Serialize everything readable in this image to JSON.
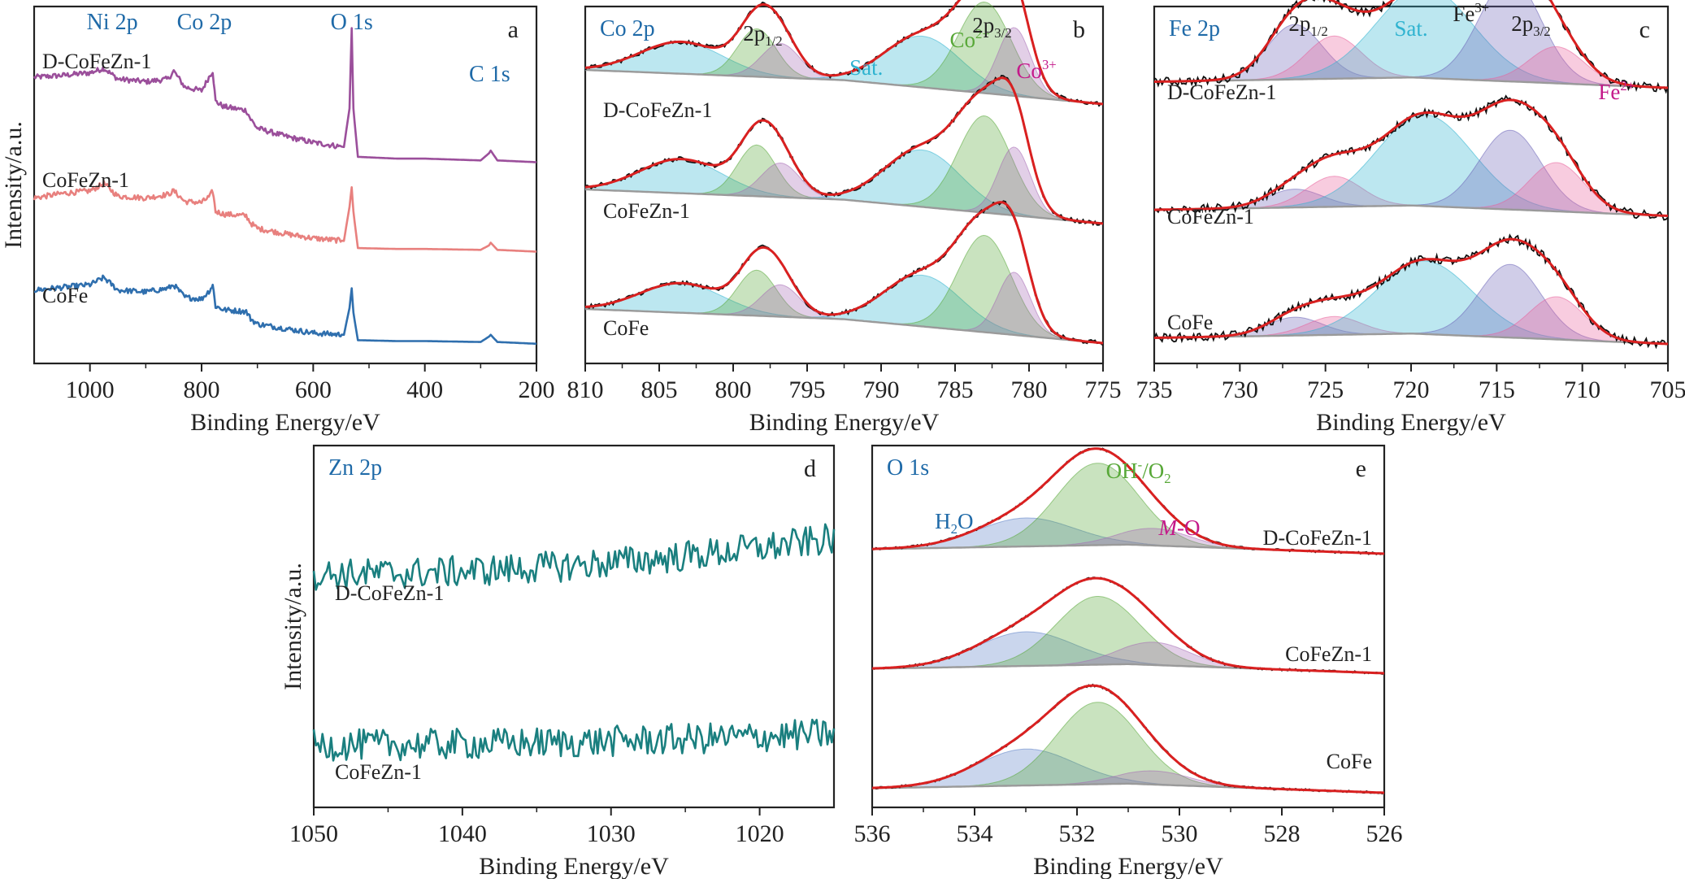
{
  "figure": {
    "colors": {
      "D-CoFeZn-1": "#9b4f9b",
      "CoFeZn-1": "#e8807e",
      "CoFe": "#2f6fae",
      "zn": "#1a7f7f",
      "title": "#1f6aa8",
      "cyan": "#2fb3d0",
      "green": "#58a838",
      "magenta": "#c4198a",
      "fit": "#d92020",
      "raw": "#111111",
      "background": "#9a9a9a"
    }
  },
  "chart_data": [
    {
      "id": "a",
      "type": "line",
      "letter": "a",
      "xlabel": "Binding Energy/eV",
      "ylabel": "Intensity/a.u.",
      "xlim": [
        1100,
        200
      ],
      "xticks": [
        1000,
        800,
        600,
        400,
        200
      ],
      "grid": false,
      "series": [
        {
          "name": "D-CoFeZn-1",
          "color": "#9b4f9b",
          "offset": 2.05,
          "x": [
            1100,
            1050,
            1000,
            975,
            950,
            900,
            860,
            850,
            830,
            800,
            785,
            780,
            775,
            760,
            720,
            712,
            700,
            650,
            600,
            545,
            535,
            531,
            528,
            520,
            450,
            400,
            300,
            285,
            282,
            270,
            200
          ],
          "y": [
            0.95,
            0.97,
            1.0,
            1.05,
            0.93,
            0.9,
            0.93,
            1.02,
            0.84,
            0.8,
            0.97,
            1.02,
            0.68,
            0.62,
            0.58,
            0.48,
            0.38,
            0.29,
            0.22,
            0.17,
            0.6,
            1.5,
            0.6,
            0.06,
            0.04,
            0.04,
            0.02,
            0.1,
            0.13,
            0.02,
            0.0
          ]
        },
        {
          "name": "CoFeZn-1",
          "color": "#e8807e",
          "offset": 1.05,
          "x": [
            1100,
            1050,
            1000,
            975,
            950,
            900,
            860,
            850,
            830,
            800,
            785,
            780,
            775,
            760,
            720,
            712,
            700,
            650,
            600,
            545,
            535,
            531,
            528,
            520,
            450,
            400,
            300,
            285,
            282,
            270,
            200
          ],
          "y": [
            0.6,
            0.65,
            0.68,
            0.76,
            0.62,
            0.6,
            0.64,
            0.68,
            0.56,
            0.55,
            0.62,
            0.68,
            0.45,
            0.42,
            0.4,
            0.32,
            0.26,
            0.2,
            0.15,
            0.12,
            0.5,
            0.72,
            0.45,
            0.04,
            0.03,
            0.03,
            0.02,
            0.07,
            0.1,
            0.02,
            0.0
          ]
        },
        {
          "name": "CoFe",
          "color": "#2f6fae",
          "offset": 0.02,
          "x": [
            1100,
            1050,
            1000,
            975,
            950,
            900,
            860,
            850,
            830,
            800,
            785,
            780,
            775,
            760,
            720,
            712,
            700,
            650,
            600,
            545,
            535,
            531,
            528,
            520,
            450,
            400,
            300,
            285,
            282,
            270,
            200
          ],
          "y": [
            0.6,
            0.63,
            0.66,
            0.74,
            0.6,
            0.58,
            0.62,
            0.66,
            0.52,
            0.5,
            0.6,
            0.66,
            0.42,
            0.38,
            0.36,
            0.28,
            0.22,
            0.17,
            0.12,
            0.1,
            0.4,
            0.62,
            0.35,
            0.04,
            0.03,
            0.03,
            0.02,
            0.08,
            0.1,
            0.02,
            0.0
          ]
        }
      ],
      "annotations": [
        {
          "text": "Ni 2p",
          "x": 960
        },
        {
          "text": "Co 2p",
          "x": 795
        },
        {
          "text": "O 1s",
          "x": 531
        },
        {
          "text": "C 1s",
          "x": 284
        }
      ]
    },
    {
      "id": "b",
      "type": "area",
      "title": "Co 2p",
      "letter": "b",
      "xlabel": "Binding Energy/eV",
      "xlim": [
        810,
        775
      ],
      "xticks": [
        810,
        805,
        800,
        795,
        790,
        785,
        780,
        775
      ],
      "grid": false,
      "background": {
        "left": 0.3,
        "right": 0.0
      },
      "spectra": [
        {
          "name": "D-CoFeZn-1",
          "offset": 2.1
        },
        {
          "name": "CoFeZn-1",
          "offset": 1.05
        },
        {
          "name": "CoFe",
          "offset": 0.0
        }
      ],
      "components": [
        {
          "name": "Sat.",
          "color": "#2fb3d0",
          "center": 803.5,
          "width": 2.8
        },
        {
          "name": "2p1/2 Co2+",
          "color": "#58a838",
          "center": 798.4,
          "width": 1.3
        },
        {
          "name": "2p1/2 Co3+",
          "color": "#a56bb5",
          "center": 796.8,
          "width": 1.3
        },
        {
          "name": "Sat.",
          "color": "#2fb3d0",
          "center": 787.2,
          "width": 2.6
        },
        {
          "name": "Co2+",
          "color": "#58a838",
          "center": 783.0,
          "width": 1.8
        },
        {
          "name": "Co3+",
          "color": "#a56bb5",
          "center": 781.0,
          "width": 1.1
        }
      ],
      "amplitudes": [
        [
          0.28,
          0.42,
          0.3,
          0.45,
          0.8,
          0.6
        ],
        [
          0.3,
          0.45,
          0.3,
          0.5,
          0.85,
          0.6
        ],
        [
          0.26,
          0.4,
          0.28,
          0.45,
          0.85,
          0.55
        ]
      ],
      "labels": [
        {
          "text": "2p",
          "sub": "1/2",
          "x": 798
        },
        {
          "text": "Sat.",
          "x": 791,
          "color": "#2fb3d0"
        },
        {
          "text": "Co",
          "sup": "2+",
          "x": 784,
          "color": "#58a838"
        },
        {
          "text": "2p",
          "sub": "3/2",
          "x": 782.5
        },
        {
          "text": "Co",
          "sup": "3+",
          "x": 779.5,
          "color": "#c4198a"
        }
      ]
    },
    {
      "id": "c",
      "type": "area",
      "title": "Fe 2p",
      "letter": "c",
      "xlabel": "Binding Energy/eV",
      "xlim": [
        735,
        705
      ],
      "xticks": [
        735,
        730,
        725,
        720,
        715,
        710,
        705
      ],
      "grid": false,
      "background": {
        "left": 0.05,
        "right": 0.0
      },
      "spectra": [
        {
          "name": "D-CoFeZn-1",
          "offset": 2.1
        },
        {
          "name": "CoFeZn-1",
          "offset": 1.05
        },
        {
          "name": "CoFe",
          "offset": 0.0
        }
      ],
      "components": [
        {
          "name": "2p1/2 Fe3+",
          "color": "#6c64b8",
          "center": 726.8,
          "width": 1.6
        },
        {
          "name": "2p1/2 Fe2+",
          "color": "#e8609a",
          "center": 724.5,
          "width": 1.6
        },
        {
          "name": "Sat.",
          "color": "#2fb3d0",
          "center": 719.2,
          "width": 2.8
        },
        {
          "name": "Fe3+",
          "color": "#6c64b8",
          "center": 714.2,
          "width": 1.8
        },
        {
          "name": "Fe2+",
          "color": "#e8609a",
          "center": 711.5,
          "width": 1.6
        }
      ],
      "amplitudes": [
        [
          0.45,
          0.35,
          0.75,
          0.85,
          0.3
        ],
        [
          0.15,
          0.25,
          0.75,
          0.65,
          0.4
        ],
        [
          0.15,
          0.15,
          0.6,
          0.6,
          0.35
        ]
      ],
      "labels": [
        {
          "text": "2p",
          "sub": "1/2",
          "x": 726
        },
        {
          "text": "Sat.",
          "x": 720,
          "color": "#2fb3d0"
        },
        {
          "text": "Fe",
          "sup": "3+",
          "x": 716.5
        },
        {
          "text": "2p",
          "sub": "3/2",
          "x": 713
        },
        {
          "text": "Fe",
          "sup": "2+",
          "x": 708,
          "color": "#c4198a"
        }
      ]
    },
    {
      "id": "d",
      "type": "line",
      "title": "Zn 2p",
      "letter": "d",
      "xlabel": "Binding Energy/eV",
      "ylabel": "Intensity/a.u.",
      "xlim": [
        1050,
        1015
      ],
      "xticks": [
        1050,
        1040,
        1030,
        1020
      ],
      "grid": false,
      "series": [
        {
          "name": "D-CoFeZn-1",
          "color": "#1a7f7f",
          "offset": 1.25,
          "trend": 0.25
        },
        {
          "name": "CoFeZn-1",
          "color": "#1a7f7f",
          "offset": 0.05,
          "trend": 0.08
        }
      ]
    },
    {
      "id": "e",
      "type": "area",
      "title": "O 1s",
      "letter": "e",
      "xlabel": "Binding Energy/eV",
      "xlim": [
        536,
        526
      ],
      "xticks": [
        536,
        534,
        532,
        530,
        528,
        526
      ],
      "grid": false,
      "background": {
        "left": 0.04,
        "right": 0.0
      },
      "spectra": [
        {
          "name": "D-CoFeZn-1",
          "offset": 2.1
        },
        {
          "name": "CoFeZn-1",
          "offset": 1.05
        },
        {
          "name": "CoFe",
          "offset": 0.0
        }
      ],
      "components": [
        {
          "name": "H2O",
          "color": "#5b7fc7",
          "center": 533.0,
          "width": 0.95
        },
        {
          "name": "OH-/O2",
          "color": "#58a838",
          "center": 531.6,
          "width": 0.8
        },
        {
          "name": "M-O",
          "color": "#a56bb5",
          "center": 530.5,
          "width": 0.7
        }
      ],
      "amplitudes": [
        [
          0.25,
          0.72,
          0.15
        ],
        [
          0.3,
          0.6,
          0.2
        ],
        [
          0.32,
          0.72,
          0.12
        ]
      ],
      "labels": [
        {
          "text": "H",
          "sub": "2",
          "tail": "O",
          "x": 534.4,
          "color": "#1f6aa8"
        },
        {
          "text": "OH",
          "sup": "-",
          "tail": "/O",
          "tailSub": "2",
          "x": 530.8,
          "color": "#58a838"
        },
        {
          "text": "M",
          "italic": true,
          "tail": "-O",
          "x": 530.0,
          "color": "#c4198a"
        }
      ]
    }
  ]
}
